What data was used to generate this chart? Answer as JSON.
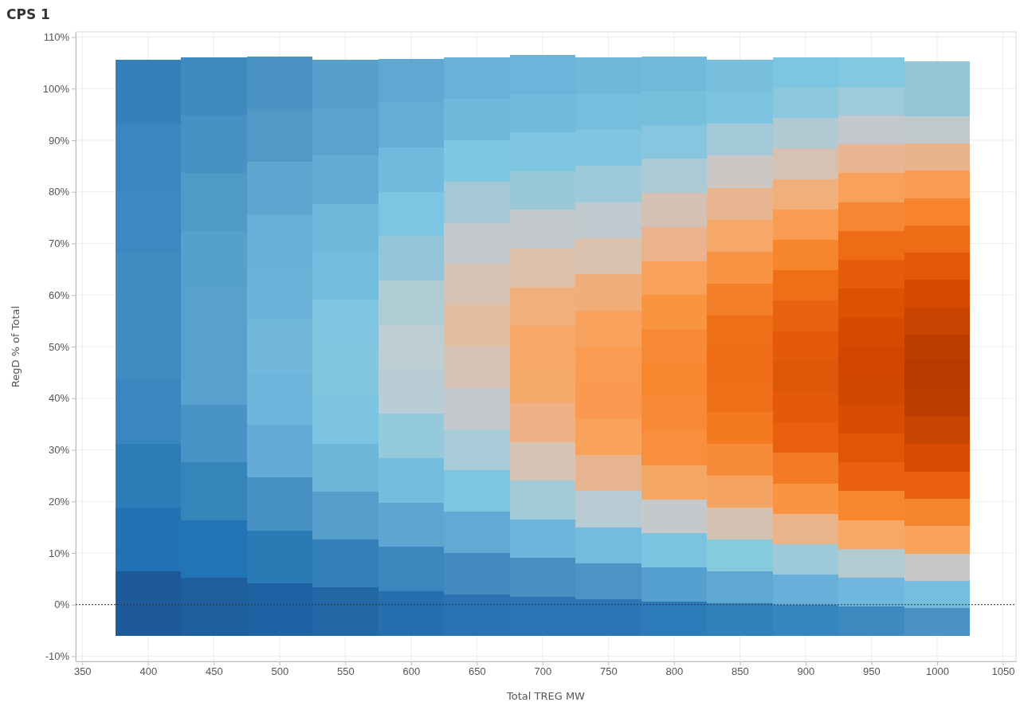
{
  "chart_data": {
    "type": "bar",
    "title": "CPS 1",
    "xlabel": "Total TREG MW",
    "ylabel": "RegD % of Total",
    "grid": true,
    "x": [
      400,
      450,
      500,
      550,
      600,
      650,
      700,
      750,
      800,
      850,
      900,
      950,
      1000
    ],
    "xlim": [
      345,
      1060
    ],
    "xticks": [
      350,
      400,
      450,
      500,
      550,
      600,
      650,
      700,
      750,
      800,
      850,
      900,
      950,
      1000,
      1050
    ],
    "ylim": [
      -11,
      111
    ],
    "yticks": [
      {
        "value": -10,
        "label": "-10%"
      },
      {
        "value": 0,
        "label": "0%"
      },
      {
        "value": 10,
        "label": "10%"
      },
      {
        "value": 20,
        "label": "20%"
      },
      {
        "value": 30,
        "label": "30%"
      },
      {
        "value": 40,
        "label": "40%"
      },
      {
        "value": 50,
        "label": "50%"
      },
      {
        "value": 60,
        "label": "60%"
      },
      {
        "value": 70,
        "label": "70%"
      },
      {
        "value": 80,
        "label": "80%"
      },
      {
        "value": 90,
        "label": "90%"
      },
      {
        "value": 100,
        "label": "100%"
      },
      {
        "value": 110,
        "label": "110%"
      }
    ],
    "ref_lines": [
      {
        "axis": "y",
        "value": 0,
        "line_style": "dotted",
        "color": "#333333"
      }
    ],
    "series": [
      {
        "base": [
          -6,
          -6,
          -6,
          -6,
          -6,
          -6,
          -6,
          -6,
          -6,
          -6,
          -6,
          -6,
          -6
        ],
        "values": [
          12.4,
          11.2,
          10.2,
          9.3,
          8.6,
          8.0,
          7.5,
          7.0,
          6.6,
          6.2,
          5.9,
          5.6,
          5.3
        ],
        "colors": [
          "#1e5a98",
          "#1f5f9e",
          "#1f62a3",
          "#2268a6",
          "#256fae",
          "#2a72b2",
          "#2b74b5",
          "#2c76b6",
          "#2d7ab8",
          "#3282ba",
          "#3785be",
          "#3d89c0",
          "#4a92c3"
        ]
      },
      {
        "base": [
          6.4,
          5.2,
          4.2,
          3.3,
          2.6,
          2,
          1.5,
          1,
          0.6,
          0.2,
          -0.1,
          -0.4,
          -0.7
        ],
        "values": [
          12.4,
          11.2,
          10.2,
          9.3,
          8.6,
          8.0,
          7.5,
          7.0,
          6.6,
          6.2,
          5.9,
          5.6,
          5.3
        ],
        "colors": [
          "#2372b4",
          "#2275b5",
          "#2a7ab6",
          "#3580bb",
          "#3a86bd",
          "#4489c0",
          "#4a8fc3",
          "#4d93c6",
          "#55a0cf",
          "#5fa8d4",
          "#68b0da",
          "#6fb7dc",
          "#74bfdf"
        ]
      },
      {
        "base": [
          18.8,
          16.4,
          14.4,
          12.6,
          11.2,
          10,
          9,
          8,
          7.2,
          6.4,
          5.8,
          5.2,
          4.6
        ],
        "values": [
          12.4,
          11.2,
          10.2,
          9.3,
          8.6,
          8.0,
          7.5,
          7.0,
          6.6,
          6.2,
          5.9,
          5.6,
          5.3
        ],
        "colors": [
          "#2d7cb8",
          "#3584ba",
          "#4790c4",
          "#57a0cd",
          "#5ea6d2",
          "#62aad5",
          "#6db6db",
          "#74bcdd",
          "#7ac3e1",
          "#86cade",
          "#9ccad9",
          "#b5cbd2",
          "#c9c8c6"
        ]
      },
      {
        "base": [
          31.2,
          27.6,
          24.6,
          21.9,
          19.8,
          18,
          16.5,
          15,
          13.8,
          12.6,
          11.7,
          10.8,
          9.9
        ],
        "values": [
          12.4,
          11.2,
          10.2,
          9.3,
          8.6,
          8.0,
          7.5,
          7.0,
          6.6,
          6.2,
          5.9,
          5.6,
          5.3
        ],
        "colors": [
          "#3a86bf",
          "#4a93c6",
          "#63abd6",
          "#6db6d9",
          "#73bddd",
          "#7dc6e0",
          "#a1cbd9",
          "#b8cbd2",
          "#c6c9cb",
          "#d3c1b2",
          "#e9b38b",
          "#f7a866",
          "#f9a35d"
        ]
      },
      {
        "base": [
          43.6,
          38.8,
          34.8,
          31.2,
          28.4,
          26,
          24,
          22,
          20.4,
          18.8,
          17.6,
          16.4,
          15.2
        ],
        "values": [
          12.4,
          11.2,
          10.2,
          9.3,
          8.6,
          8.0,
          7.5,
          7.0,
          6.6,
          6.2,
          5.9,
          5.6,
          5.3
        ],
        "colors": [
          "#3f8cc2",
          "#58a0cd",
          "#6db5da",
          "#7cc4e1",
          "#95c9dc",
          "#a7ccd8",
          "#d6c4b6",
          "#e6b58f",
          "#f5a866",
          "#f5a463",
          "#f99442",
          "#f8862f",
          "#f68530"
        ]
      },
      {
        "base": [
          56,
          50,
          45,
          40.5,
          37,
          34,
          31.5,
          29,
          27,
          25,
          23.5,
          22,
          20.5
        ],
        "values": [
          12.4,
          11.2,
          10.2,
          9.3,
          8.6,
          8.0,
          7.5,
          7.0,
          6.6,
          6.2,
          5.9,
          5.6,
          5.3
        ],
        "colors": [
          "#3f8cc2",
          "#58a1cd",
          "#71b8db",
          "#83c7de",
          "#b8cdd5",
          "#c5c8cc",
          "#ecb286",
          "#f9a25c",
          "#f98e3c",
          "#f88b38",
          "#f47b25",
          "#ea620f",
          "#e8600d"
        ]
      },
      {
        "base": [
          68.4,
          61.2,
          55.2,
          49.8,
          45.6,
          42,
          39,
          36,
          33.6,
          31.2,
          29.4,
          27.6,
          25.8
        ],
        "values": [
          12.4,
          11.2,
          10.2,
          9.3,
          8.6,
          8.0,
          7.5,
          7.0,
          6.6,
          6.2,
          5.9,
          5.6,
          5.3
        ],
        "colors": [
          "#3d88c0",
          "#56a0cc",
          "#6bb3d9",
          "#80c6e0",
          "#bdcfd3",
          "#d7c3b5",
          "#f5a96b",
          "#f99a50",
          "#f98a35",
          "#f47a22",
          "#e8600d",
          "#df5606",
          "#d74c02"
        ]
      },
      {
        "base": [
          80.8,
          72.4,
          65.4,
          59.1,
          54.2,
          50,
          46.5,
          43,
          40.2,
          37.4,
          35.3,
          33.2,
          31.1
        ],
        "values": [
          12.4,
          11.2,
          10.2,
          9.3,
          8.6,
          8.0,
          7.5,
          7.0,
          6.6,
          6.2,
          5.9,
          5.6,
          5.3
        ],
        "colors": [
          "#3b86be",
          "#509ac8",
          "#66afd7",
          "#74bcdd",
          "#b0ccd5",
          "#e2bea0",
          "#f7a868",
          "#f99b51",
          "#f8872f",
          "#ef6f18",
          "#e25a0a",
          "#d74d02",
          "#c94400"
        ]
      },
      {
        "base": [
          93.2,
          83.6,
          75.6,
          68.4,
          62.8,
          58,
          54,
          50,
          46.8,
          43.6,
          41.2,
          38.8,
          36.4
        ],
        "values": [
          12.4,
          11.2,
          10.2,
          9.3,
          8.6,
          8.0,
          7.5,
          7.0,
          6.6,
          6.2,
          5.9,
          5.6,
          5.3
        ],
        "colors": [
          "#3580b8",
          "#4791c4",
          "#5ea5cf",
          "#70b7dc",
          "#93c6db",
          "#d6c3b4",
          "#f0b07c",
          "#f8a25d",
          "#f98a35",
          "#ee6c15",
          "#de5608",
          "#d14800",
          "#bd3d00"
        ]
      },
      {
        "base": [
          null,
          94.8,
          85.8,
          77.7,
          71.4,
          66,
          61.5,
          57,
          53.4,
          49.8,
          47.1,
          44.4,
          41.7
        ],
        "values": [
          null,
          11.2,
          10.2,
          9.3,
          8.6,
          8.0,
          7.5,
          7.0,
          6.6,
          6.2,
          5.9,
          5.6,
          5.3
        ],
        "colors": [
          null,
          "#3f8bc0",
          "#5299c8",
          "#64abd4",
          "#7cc6e3",
          "#c5c9cc",
          "#dbc1ac",
          "#f1ae78",
          "#f9953f",
          "#ef6f18",
          "#e25a0a",
          "#d14600",
          "#b93a00"
        ]
      },
      {
        "base": [
          null,
          null,
          96,
          87,
          80,
          74,
          69,
          64,
          60,
          56,
          53,
          50,
          47
        ],
        "values": [
          null,
          null,
          10.2,
          9.3,
          8.6,
          8.0,
          7.5,
          7.0,
          6.6,
          6.2,
          5.9,
          5.6,
          5.3
        ],
        "colors": [
          null,
          null,
          "#4a93c4",
          "#5ba3cf",
          "#70bbdd",
          "#a5c8d6",
          "#c2c8cc",
          "#d9c1ad",
          "#f7a15b",
          "#f57e28",
          "#e8620f",
          "#d44a01",
          "#bd3d00"
        ]
      },
      {
        "base": [
          null,
          null,
          null,
          96.3,
          88.6,
          82,
          76.5,
          71,
          66.6,
          62.2,
          58.9,
          55.6,
          52.3
        ],
        "values": [
          null,
          null,
          null,
          9.3,
          8.6,
          8.0,
          7.5,
          7.0,
          6.6,
          6.2,
          5.9,
          5.6,
          5.3
        ],
        "colors": [
          null,
          null,
          null,
          "#57a0cb",
          "#64add4",
          "#7ec8e2",
          "#99c8d9",
          "#c0c9ce",
          "#eab38e",
          "#f99445",
          "#ef6e18",
          "#dc5205",
          "#c84300"
        ]
      },
      {
        "base": [
          null,
          null,
          null,
          null,
          97.2,
          90,
          84,
          78,
          73.2,
          68.4,
          64.8,
          61.2,
          57.6
        ],
        "values": [
          null,
          null,
          null,
          null,
          8.6,
          8.0,
          7.5,
          7.0,
          6.6,
          6.2,
          5.9,
          5.6,
          5.3
        ],
        "colors": [
          null,
          null,
          null,
          null,
          "#5fa8d1",
          "#70b8dc",
          "#7ec5e1",
          "#9dcad9",
          "#d4c1b4",
          "#f7a767",
          "#f7852c",
          "#e55c0a",
          "#d44a01"
        ]
      },
      {
        "base": [
          null,
          null,
          null,
          null,
          null,
          98,
          91.5,
          85,
          79.8,
          74.6,
          70.7,
          66.8,
          62.9
        ],
        "values": [
          null,
          null,
          null,
          null,
          null,
          8.0,
          7.5,
          7.0,
          6.6,
          6.2,
          5.9,
          5.6,
          5.3
        ],
        "colors": [
          null,
          null,
          null,
          null,
          null,
          "#68b1d8",
          "#72bbdc",
          "#80c6e1",
          "#aacad6",
          "#e9b591",
          "#f99b50",
          "#ee6c15",
          "#e2580a"
        ]
      },
      {
        "base": [
          null,
          null,
          null,
          null,
          null,
          null,
          99,
          92,
          86.4,
          80.8,
          76.6,
          72.4,
          68.2
        ],
        "values": [
          null,
          null,
          null,
          null,
          null,
          null,
          7.5,
          7.0,
          6.6,
          6.2,
          5.9,
          5.6,
          5.3
        ],
        "colors": [
          null,
          null,
          null,
          null,
          null,
          null,
          "#6cb4d9",
          "#75bedd",
          "#86c6df",
          "#cbc7c5",
          "#f1af7b",
          "#f78532",
          "#ee6c15"
        ]
      },
      {
        "base": [
          null,
          null,
          null,
          null,
          null,
          null,
          null,
          99,
          93,
          87,
          82.5,
          78,
          73.5
        ],
        "values": [
          null,
          null,
          null,
          null,
          null,
          null,
          null,
          7.0,
          6.6,
          6.2,
          5.9,
          5.6,
          5.3
        ],
        "colors": [
          null,
          null,
          null,
          null,
          null,
          null,
          null,
          "#6fb8db",
          "#76bfdd",
          "#a3c9d8",
          "#d6c2b3",
          "#f9a15c",
          "#f7832f"
        ]
      },
      {
        "base": [
          null,
          null,
          null,
          null,
          null,
          null,
          null,
          null,
          99.6,
          93.2,
          88.4,
          83.6,
          78.8
        ],
        "values": [
          null,
          null,
          null,
          null,
          null,
          null,
          null,
          null,
          6.6,
          6.2,
          5.9,
          5.6,
          5.3
        ],
        "colors": [
          null,
          null,
          null,
          null,
          null,
          null,
          null,
          null,
          "#72badc",
          "#7cc4e1",
          "#b0c9d3",
          "#e8b691",
          "#f99b50"
        ]
      },
      {
        "base": [
          null,
          null,
          null,
          null,
          null,
          null,
          null,
          null,
          null,
          99.4,
          94.3,
          89.2,
          84.1
        ],
        "values": [
          null,
          null,
          null,
          null,
          null,
          null,
          null,
          null,
          null,
          6.2,
          5.9,
          5.6,
          5.3
        ],
        "colors": [
          null,
          null,
          null,
          null,
          null,
          null,
          null,
          null,
          null,
          "#78c0de",
          "#8dc9dd",
          "#c4c8cc",
          "#e8b38b"
        ]
      },
      {
        "base": [
          null,
          null,
          null,
          null,
          null,
          null,
          null,
          null,
          null,
          null,
          100.2,
          94.8,
          89.4
        ],
        "values": [
          null,
          null,
          null,
          null,
          null,
          null,
          null,
          null,
          null,
          null,
          5.9,
          5.6,
          5.3
        ],
        "colors": [
          null,
          null,
          null,
          null,
          null,
          null,
          null,
          null,
          null,
          null,
          "#7cc6e2",
          "#9dcbda",
          "#c2c9cc"
        ]
      },
      {
        "base": [
          null,
          null,
          null,
          null,
          null,
          null,
          null,
          null,
          null,
          null,
          null,
          100.4,
          94.7
        ],
        "values": [
          null,
          null,
          null,
          null,
          null,
          null,
          null,
          null,
          null,
          null,
          null,
          5.6,
          5.3
        ],
        "colors": [
          null,
          null,
          null,
          null,
          null,
          null,
          null,
          null,
          null,
          null,
          null,
          "#84c8e0",
          "#93c6d6"
        ]
      },
      {
        "base": [
          null,
          null,
          null,
          null,
          null,
          null,
          null,
          null,
          null,
          null,
          null,
          null,
          100
        ],
        "values": [
          null,
          null,
          null,
          null,
          null,
          null,
          null,
          null,
          null,
          null,
          null,
          null,
          5.3
        ],
        "colors": [
          null,
          null,
          null,
          null,
          null,
          null,
          null,
          null,
          null,
          null,
          null,
          null,
          "#93c6d6"
        ]
      }
    ]
  }
}
